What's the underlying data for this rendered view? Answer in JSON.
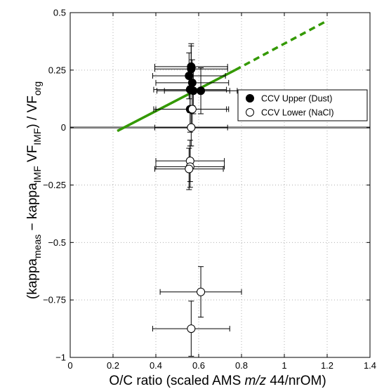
{
  "chart_data": {
    "type": "scatter",
    "xlim": [
      0,
      1.4
    ],
    "ylim": [
      -1,
      0.5
    ],
    "x_ticks": [
      "0",
      "0.2",
      "0.4",
      "0.6",
      "0.8",
      "1",
      "1.2",
      "1.4"
    ],
    "y_ticks": [
      "0.5",
      "0.25",
      "0",
      "−0.25",
      "−0.5",
      "−0.75",
      "−1"
    ],
    "x_tick_values": [
      0,
      0.2,
      0.4,
      0.6,
      0.8,
      1.0,
      1.2,
      1.4
    ],
    "y_tick_values": [
      0.5,
      0.25,
      0,
      -0.25,
      -0.5,
      -0.75,
      -1
    ],
    "xlabel": {
      "pre": "O/C ratio (scaled AMS ",
      "italic": "m/z",
      "post": " 44/nrOM)"
    },
    "ylabel": "(kappa_meas − kappa_IMF VF_IMF) / VF_org",
    "grid": true,
    "legend_position": "right",
    "series": [
      {
        "name": "CCV Upper (Dust)",
        "marker": "filled-circle",
        "color": "#000000",
        "points": [
          {
            "x": 0.565,
            "y": 0.265,
            "xerr": 0.17,
            "yerr": 0.1
          },
          {
            "x": 0.565,
            "y": 0.255,
            "xerr": 0.17,
            "yerr": 0.1
          },
          {
            "x": 0.555,
            "y": 0.225,
            "xerr": 0.17,
            "yerr": 0.1
          },
          {
            "x": 0.57,
            "y": 0.195,
            "xerr": 0.17,
            "yerr": 0.1
          },
          {
            "x": 0.56,
            "y": 0.165,
            "xerr": 0.17,
            "yerr": 0.1
          },
          {
            "x": 0.575,
            "y": 0.16,
            "xerr": 0.17,
            "yerr": 0.1
          },
          {
            "x": 0.61,
            "y": 0.16,
            "xerr": 0.17,
            "yerr": 0.1
          },
          {
            "x": 0.56,
            "y": 0.08,
            "xerr": 0.17,
            "yerr": 0.1
          }
        ]
      },
      {
        "name": "CCV Lower (NaCl)",
        "marker": "open-circle",
        "color": "#000000",
        "points": [
          {
            "x": 0.57,
            "y": 0.08,
            "xerr": 0.17,
            "yerr": 0.08
          },
          {
            "x": 0.565,
            "y": 0.0,
            "xerr": 0.17,
            "yerr": 0.08
          },
          {
            "x": 0.56,
            "y": -0.145,
            "xerr": 0.16,
            "yerr": 0.09
          },
          {
            "x": 0.56,
            "y": -0.17,
            "xerr": 0.16,
            "yerr": 0.09
          },
          {
            "x": 0.555,
            "y": -0.18,
            "xerr": 0.16,
            "yerr": 0.09
          },
          {
            "x": 0.61,
            "y": -0.715,
            "xerr": 0.19,
            "yerr": 0.11
          },
          {
            "x": 0.565,
            "y": -0.875,
            "xerr": 0.18,
            "yerr": 0.12
          }
        ]
      }
    ],
    "fit_line": {
      "color": "#339900",
      "solid": [
        [
          0.22,
          -0.015
        ],
        [
          0.77,
          0.25
        ]
      ],
      "dashed": [
        [
          0.77,
          0.25
        ],
        [
          1.19,
          0.46
        ]
      ]
    },
    "zero_line": {
      "y": 0,
      "color": "#808080"
    }
  }
}
